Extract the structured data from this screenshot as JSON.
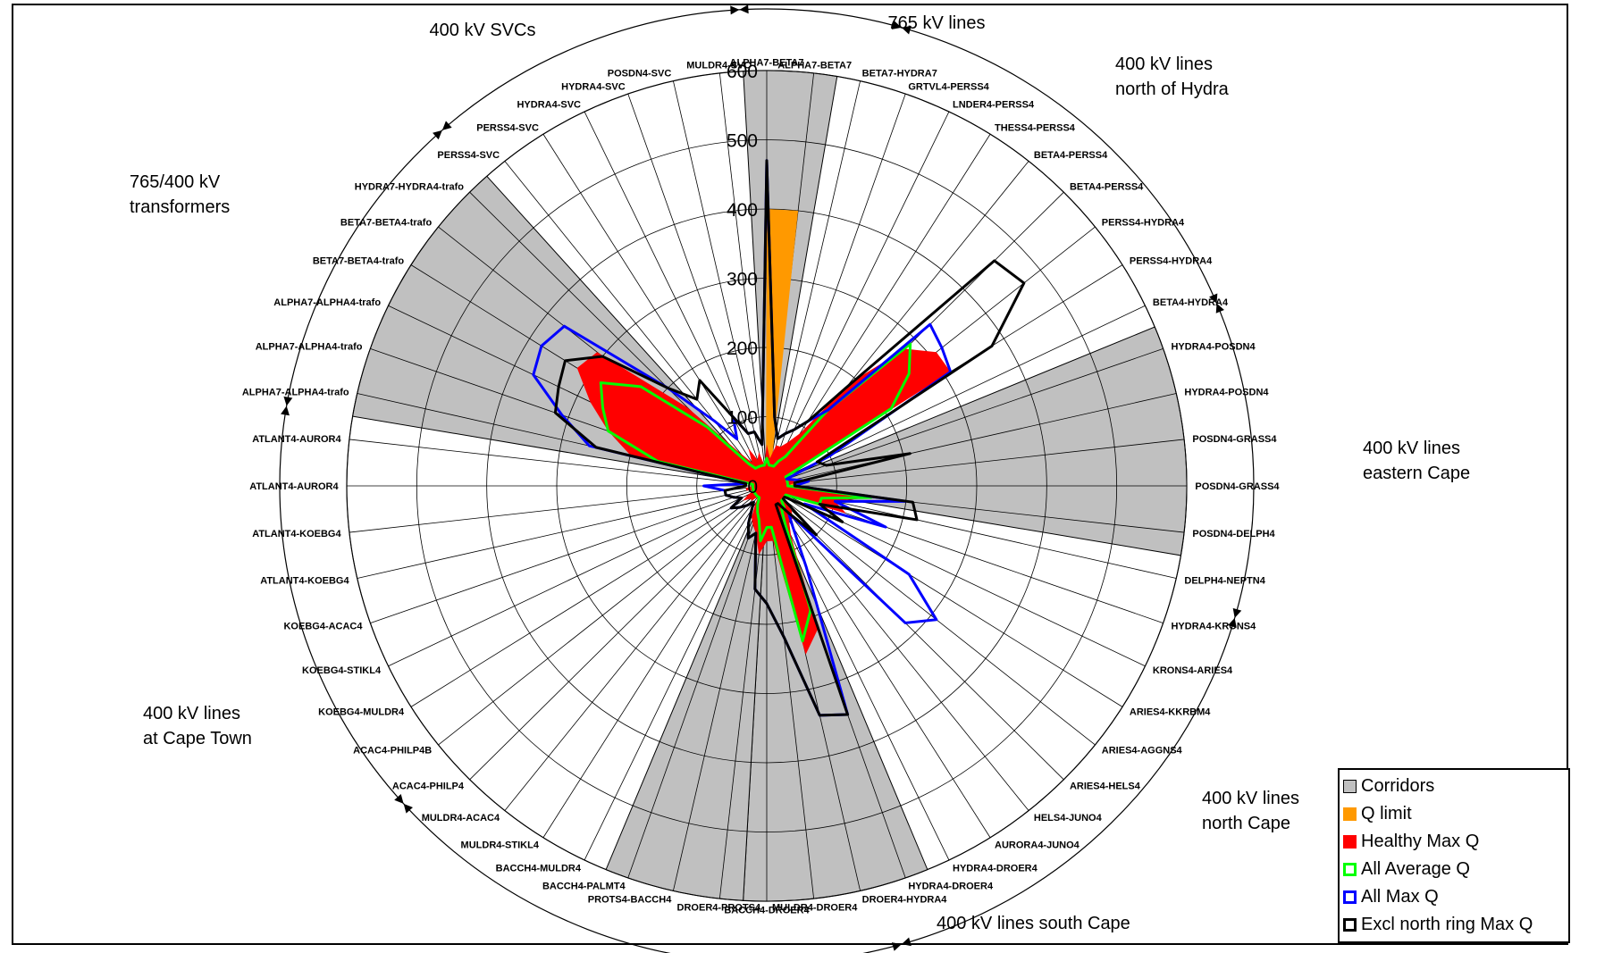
{
  "chart_data": {
    "type": "radar",
    "rlim": [
      0,
      600
    ],
    "rticks": [
      "0",
      "100",
      "200",
      "300",
      "400",
      "500",
      "600"
    ],
    "categories": [
      "ALPHA7-BETA7",
      "ALPHA7-BETA7",
      "BETA7-HYDRA7",
      "GRTVL4-PERSS4",
      "LNDER4-PERSS4",
      "THESS4-PERSS4",
      "BETA4-PERSS4",
      "BETA4-PERSS4",
      "PERSS4-HYDRA4",
      "PERSS4-HYDRA4",
      "BETA4-HYDRA4",
      "HYDRA4-POSDN4",
      "HYDRA4-POSDN4",
      "POSDN4-GRASS4",
      "POSDN4-GRASS4",
      "POSDN4-DELPH4",
      "DELPH4-NEPTN4",
      "HYDRA4-KRONS4",
      "KRONS4-ARIES4",
      "ARIES4-KKRBM4",
      "ARIES4-AGGNS4",
      "ARIES4-HELS4",
      "HELS4-JUNO4",
      "AURORA4-JUNO4",
      "HYDRA4-DROER4",
      "HYDRA4-DROER4",
      "DROER4-HYDRA4",
      "MULDR4-DROER4",
      "BACCH4-DROER4",
      "DROER4-PROTS4",
      "PROTS4-BACCH4",
      "BACCH4-PALMT4",
      "BACCH4-MULDR4",
      "MULDR4-STIKL4",
      "MULDR4-ACAC4",
      "ACAC4-PHILP4",
      "ACAC4-PHILP4B",
      "KOEBG4-MULDR4",
      "KOEBG4-STIKL4",
      "KOEBG4-ACAC4",
      "ATLANT4-KOEBG4",
      "ATLANT4-KOEBG4",
      "ATLANT4-AUROR4",
      "ATLANT4-AUROR4",
      "ALPHA7-ALPHA4-trafo",
      "ALPHA7-ALPHA4-trafo",
      "ALPHA7-ALPHA4-trafo",
      "BETA7-BETA4-trafo",
      "BETA7-BETA4-trafo",
      "HYDRA7-HYDRA4-trafo",
      "PERSS4-SVC",
      "PERSS4-SVC",
      "HYDRA4-SVC",
      "HYDRA4-SVC",
      "POSDN4-SVC",
      "MULDR4-SVC"
    ],
    "corridors": [
      [
        0,
        1
      ],
      [
        11,
        15
      ],
      [
        25,
        28
      ],
      [
        29,
        31
      ],
      [
        44,
        49
      ]
    ],
    "series": [
      {
        "name": "Q limit",
        "values": [
          400,
          400,
          30,
          20,
          20,
          20,
          40,
          40,
          40,
          30,
          30,
          20,
          20,
          40,
          40,
          30,
          20,
          20,
          10,
          10,
          10,
          10,
          10,
          20,
          60,
          60,
          80,
          80,
          10,
          60,
          60,
          60,
          40,
          20,
          20,
          10,
          10,
          10,
          10,
          10,
          20,
          20,
          20,
          20,
          40,
          40,
          40,
          50,
          50,
          30,
          10,
          10,
          10,
          10,
          10,
          10
        ]
      },
      {
        "name": "Healthy Max Q",
        "values": [
          60,
          40,
          60,
          60,
          70,
          90,
          190,
          280,
          310,
          310,
          30,
          30,
          40,
          40,
          30,
          150,
          100,
          120,
          40,
          30,
          30,
          50,
          60,
          60,
          80,
          220,
          250,
          80,
          80,
          100,
          70,
          60,
          50,
          30,
          20,
          30,
          30,
          40,
          30,
          20,
          30,
          30,
          20,
          30,
          200,
          240,
          280,
          320,
          310,
          160,
          60,
          40,
          60,
          40,
          50,
          30
        ]
      },
      {
        "name": "All Average Q",
        "values": [
          40,
          30,
          30,
          30,
          40,
          50,
          140,
          290,
          260,
          210,
          30,
          30,
          30,
          30,
          30,
          150,
          80,
          80,
          30,
          30,
          30,
          30,
          40,
          40,
          60,
          190,
          230,
          60,
          60,
          80,
          50,
          40,
          30,
          20,
          20,
          20,
          20,
          20,
          20,
          20,
          20,
          20,
          20,
          20,
          160,
          240,
          260,
          280,
          230,
          120,
          40,
          30,
          30,
          30,
          30,
          30
        ]
      },
      {
        "name": "All Max Q",
        "values": [
          470,
          100,
          70,
          80,
          90,
          110,
          140,
          330,
          320,
          310,
          100,
          30,
          40,
          60,
          40,
          200,
          100,
          180,
          60,
          240,
          310,
          280,
          50,
          70,
          130,
          350,
          340,
          220,
          170,
          150,
          70,
          80,
          60,
          40,
          30,
          40,
          50,
          60,
          40,
          50,
          60,
          60,
          90,
          30,
          260,
          310,
          370,
          380,
          370,
          200,
          120,
          80,
          110,
          80,
          80,
          60
        ]
      },
      {
        "name": "Excl north ring Max Q",
        "values": [
          470,
          100,
          70,
          80,
          90,
          110,
          180,
          460,
          470,
          380,
          80,
          90,
          210,
          40,
          40,
          210,
          220,
          80,
          120,
          30,
          30,
          100,
          50,
          30,
          30,
          350,
          340,
          220,
          170,
          150,
          70,
          80,
          60,
          40,
          30,
          40,
          50,
          60,
          40,
          50,
          60,
          60,
          30,
          30,
          250,
          320,
          330,
          340,
          300,
          200,
          160,
          180,
          110,
          80,
          80,
          60
        ]
      }
    ],
    "groups": [
      {
        "label": [
          "765 kV lines"
        ]
      },
      {
        "label": [
          "400 kV lines",
          "north of Hydra"
        ]
      },
      {
        "label": [
          "400 kV lines",
          "eastern Cape"
        ]
      },
      {
        "label": [
          "400 kV lines",
          "north Cape"
        ]
      },
      {
        "label": [
          "400 kV lines south Cape"
        ]
      },
      {
        "label": [
          "400 kV lines",
          "at Cape Town"
        ]
      },
      {
        "label": [
          "765/400 kV",
          "transformers"
        ]
      },
      {
        "label": [
          "400 kV SVCs"
        ]
      }
    ],
    "legend": {
      "placement": "bottom-right",
      "items": [
        {
          "label": "Corridors",
          "fill": "#c0c0c0",
          "border": "#000000"
        },
        {
          "label": "Q limit",
          "fill": "#ff9900",
          "border": "#ff9900"
        },
        {
          "label": "Healthy Max Q",
          "fill": "#ff0000",
          "border": "#ff0000"
        },
        {
          "label": "All Average Q",
          "fill": "#ffffff",
          "border": "#00ff00"
        },
        {
          "label": "All Max Q",
          "fill": "#ffffff",
          "border": "#0000ff"
        },
        {
          "label": "Excl north ring Max Q",
          "fill": "#ffffff",
          "border": "#000000"
        }
      ]
    },
    "colors": {
      "corridor": "#c0c0c0",
      "q_limit": "#ff9900",
      "healthy_max": "#ff0000",
      "all_average": "#00ff00",
      "all_max": "#0000ff",
      "excl_north": "#000000"
    }
  }
}
